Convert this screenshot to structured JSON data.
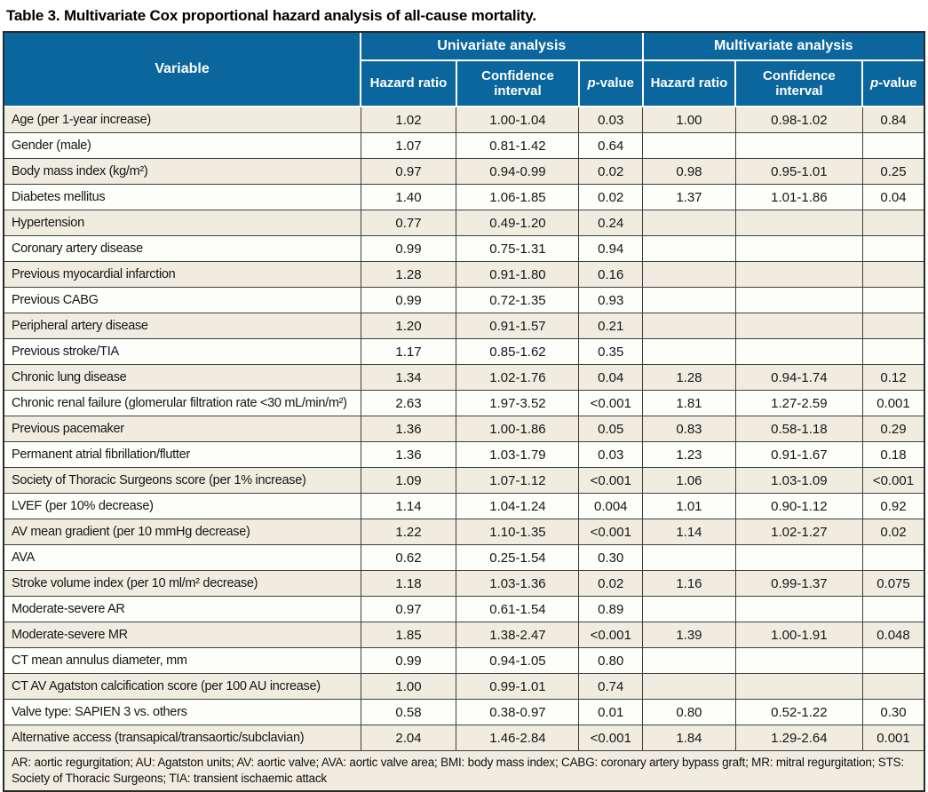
{
  "title": "Table 3. Multivariate Cox proportional hazard analysis of all-cause mortality.",
  "colors": {
    "header_bg": "#0a669d",
    "header_text": "#ffffff",
    "row_alt_bg": "#f0ecdf",
    "row_bg": "#fdfdfa",
    "border": "#3f3f3f"
  },
  "table": {
    "variable_header": "Variable",
    "group_headers": [
      "Univariate analysis",
      "Multivariate analysis"
    ],
    "sub_headers": {
      "hazard_ratio": "Hazard ratio",
      "confidence_interval": "Confidence interval",
      "p_italic": "p",
      "p_rest": "-value"
    },
    "rows": [
      {
        "variable": "Age (per 1-year increase)",
        "uni": {
          "hr": "1.02",
          "ci": "1.00-1.04",
          "p": "0.03"
        },
        "multi": {
          "hr": "1.00",
          "ci": "0.98-1.02",
          "p": "0.84"
        }
      },
      {
        "variable": "Gender (male)",
        "uni": {
          "hr": "1.07",
          "ci": "0.81-1.42",
          "p": "0.64"
        },
        "multi": {
          "hr": "",
          "ci": "",
          "p": ""
        }
      },
      {
        "variable": "Body mass index (kg/m²)",
        "uni": {
          "hr": "0.97",
          "ci": "0.94-0.99",
          "p": "0.02"
        },
        "multi": {
          "hr": "0.98",
          "ci": "0.95-1.01",
          "p": "0.25"
        }
      },
      {
        "variable": "Diabetes mellitus",
        "uni": {
          "hr": "1.40",
          "ci": "1.06-1.85",
          "p": "0.02"
        },
        "multi": {
          "hr": "1.37",
          "ci": "1.01-1.86",
          "p": "0.04"
        }
      },
      {
        "variable": "Hypertension",
        "uni": {
          "hr": "0.77",
          "ci": "0.49-1.20",
          "p": "0.24"
        },
        "multi": {
          "hr": "",
          "ci": "",
          "p": ""
        }
      },
      {
        "variable": "Coronary artery disease",
        "uni": {
          "hr": "0.99",
          "ci": "0.75-1.31",
          "p": "0.94"
        },
        "multi": {
          "hr": "",
          "ci": "",
          "p": ""
        }
      },
      {
        "variable": "Previous myocardial infarction",
        "uni": {
          "hr": "1.28",
          "ci": "0.91-1.80",
          "p": "0.16"
        },
        "multi": {
          "hr": "",
          "ci": "",
          "p": ""
        }
      },
      {
        "variable": "Previous CABG",
        "uni": {
          "hr": "0.99",
          "ci": "0.72-1.35",
          "p": "0.93"
        },
        "multi": {
          "hr": "",
          "ci": "",
          "p": ""
        }
      },
      {
        "variable": "Peripheral artery disease",
        "uni": {
          "hr": "1.20",
          "ci": "0.91-1.57",
          "p": "0.21"
        },
        "multi": {
          "hr": "",
          "ci": "",
          "p": ""
        }
      },
      {
        "variable": "Previous stroke/TIA",
        "uni": {
          "hr": "1.17",
          "ci": "0.85-1.62",
          "p": "0.35"
        },
        "multi": {
          "hr": "",
          "ci": "",
          "p": ""
        }
      },
      {
        "variable": "Chronic lung disease",
        "uni": {
          "hr": "1.34",
          "ci": "1.02-1.76",
          "p": "0.04"
        },
        "multi": {
          "hr": "1.28",
          "ci": "0.94-1.74",
          "p": "0.12"
        }
      },
      {
        "variable": "Chronic renal failure (glomerular filtration rate <30 mL/min/m²)",
        "uni": {
          "hr": "2.63",
          "ci": "1.97-3.52",
          "p": "<0.001"
        },
        "multi": {
          "hr": "1.81",
          "ci": "1.27-2.59",
          "p": "0.001"
        }
      },
      {
        "variable": "Previous pacemaker",
        "uni": {
          "hr": "1.36",
          "ci": "1.00-1.86",
          "p": "0.05"
        },
        "multi": {
          "hr": "0.83",
          "ci": "0.58-1.18",
          "p": "0.29"
        }
      },
      {
        "variable": "Permanent atrial fibrillation/flutter",
        "uni": {
          "hr": "1.36",
          "ci": "1.03-1.79",
          "p": "0.03"
        },
        "multi": {
          "hr": "1.23",
          "ci": "0.91-1.67",
          "p": "0.18"
        }
      },
      {
        "variable": "Society of Thoracic Surgeons score (per 1% increase)",
        "uni": {
          "hr": "1.09",
          "ci": "1.07-1.12",
          "p": "<0.001"
        },
        "multi": {
          "hr": "1.06",
          "ci": "1.03-1.09",
          "p": "<0.001"
        }
      },
      {
        "variable": "LVEF (per 10% decrease)",
        "uni": {
          "hr": "1.14",
          "ci": "1.04-1.24",
          "p": "0.004"
        },
        "multi": {
          "hr": "1.01",
          "ci": "0.90-1.12",
          "p": "0.92"
        }
      },
      {
        "variable": "AV mean gradient (per 10 mmHg decrease)",
        "uni": {
          "hr": "1.22",
          "ci": "1.10-1.35",
          "p": "<0.001"
        },
        "multi": {
          "hr": "1.14",
          "ci": "1.02-1.27",
          "p": "0.02"
        }
      },
      {
        "variable": "AVA",
        "uni": {
          "hr": "0.62",
          "ci": "0.25-1.54",
          "p": "0.30"
        },
        "multi": {
          "hr": "",
          "ci": "",
          "p": ""
        }
      },
      {
        "variable": "Stroke volume index (per 10 ml/m² decrease)",
        "uni": {
          "hr": "1.18",
          "ci": "1.03-1.36",
          "p": "0.02"
        },
        "multi": {
          "hr": "1.16",
          "ci": "0.99-1.37",
          "p": "0.075"
        }
      },
      {
        "variable": "Moderate-severe AR",
        "uni": {
          "hr": "0.97",
          "ci": "0.61-1.54",
          "p": "0.89"
        },
        "multi": {
          "hr": "",
          "ci": "",
          "p": ""
        }
      },
      {
        "variable": "Moderate-severe MR",
        "uni": {
          "hr": "1.85",
          "ci": "1.38-2.47",
          "p": "<0.001"
        },
        "multi": {
          "hr": "1.39",
          "ci": "1.00-1.91",
          "p": "0.048"
        }
      },
      {
        "variable": "CT mean annulus diameter, mm",
        "uni": {
          "hr": "0.99",
          "ci": "0.94-1.05",
          "p": "0.80"
        },
        "multi": {
          "hr": "",
          "ci": "",
          "p": ""
        }
      },
      {
        "variable": "CT AV Agatston calcification score (per 100 AU increase)",
        "uni": {
          "hr": "1.00",
          "ci": "0.99-1.01",
          "p": "0.74"
        },
        "multi": {
          "hr": "",
          "ci": "",
          "p": ""
        }
      },
      {
        "variable": "Valve type: SAPIEN 3 vs. others",
        "uni": {
          "hr": "0.58",
          "ci": "0.38-0.97",
          "p": "0.01"
        },
        "multi": {
          "hr": "0.80",
          "ci": "0.52-1.22",
          "p": "0.30"
        }
      },
      {
        "variable": "Alternative access (transapical/transaortic/subclavian)",
        "uni": {
          "hr": "2.04",
          "ci": "1.46-2.84",
          "p": "<0.001"
        },
        "multi": {
          "hr": "1.84",
          "ci": "1.29-2.64",
          "p": "0.001"
        }
      }
    ],
    "footnote": "AR: aortic regurgitation; AU: Agatston units; AV: aortic valve; AVA: aortic valve area; BMI: body mass index; CABG: coronary artery bypass graft; MR: mitral regurgitation; STS: Society of Thoracic Surgeons; TIA: transient ischaemic attack"
  }
}
